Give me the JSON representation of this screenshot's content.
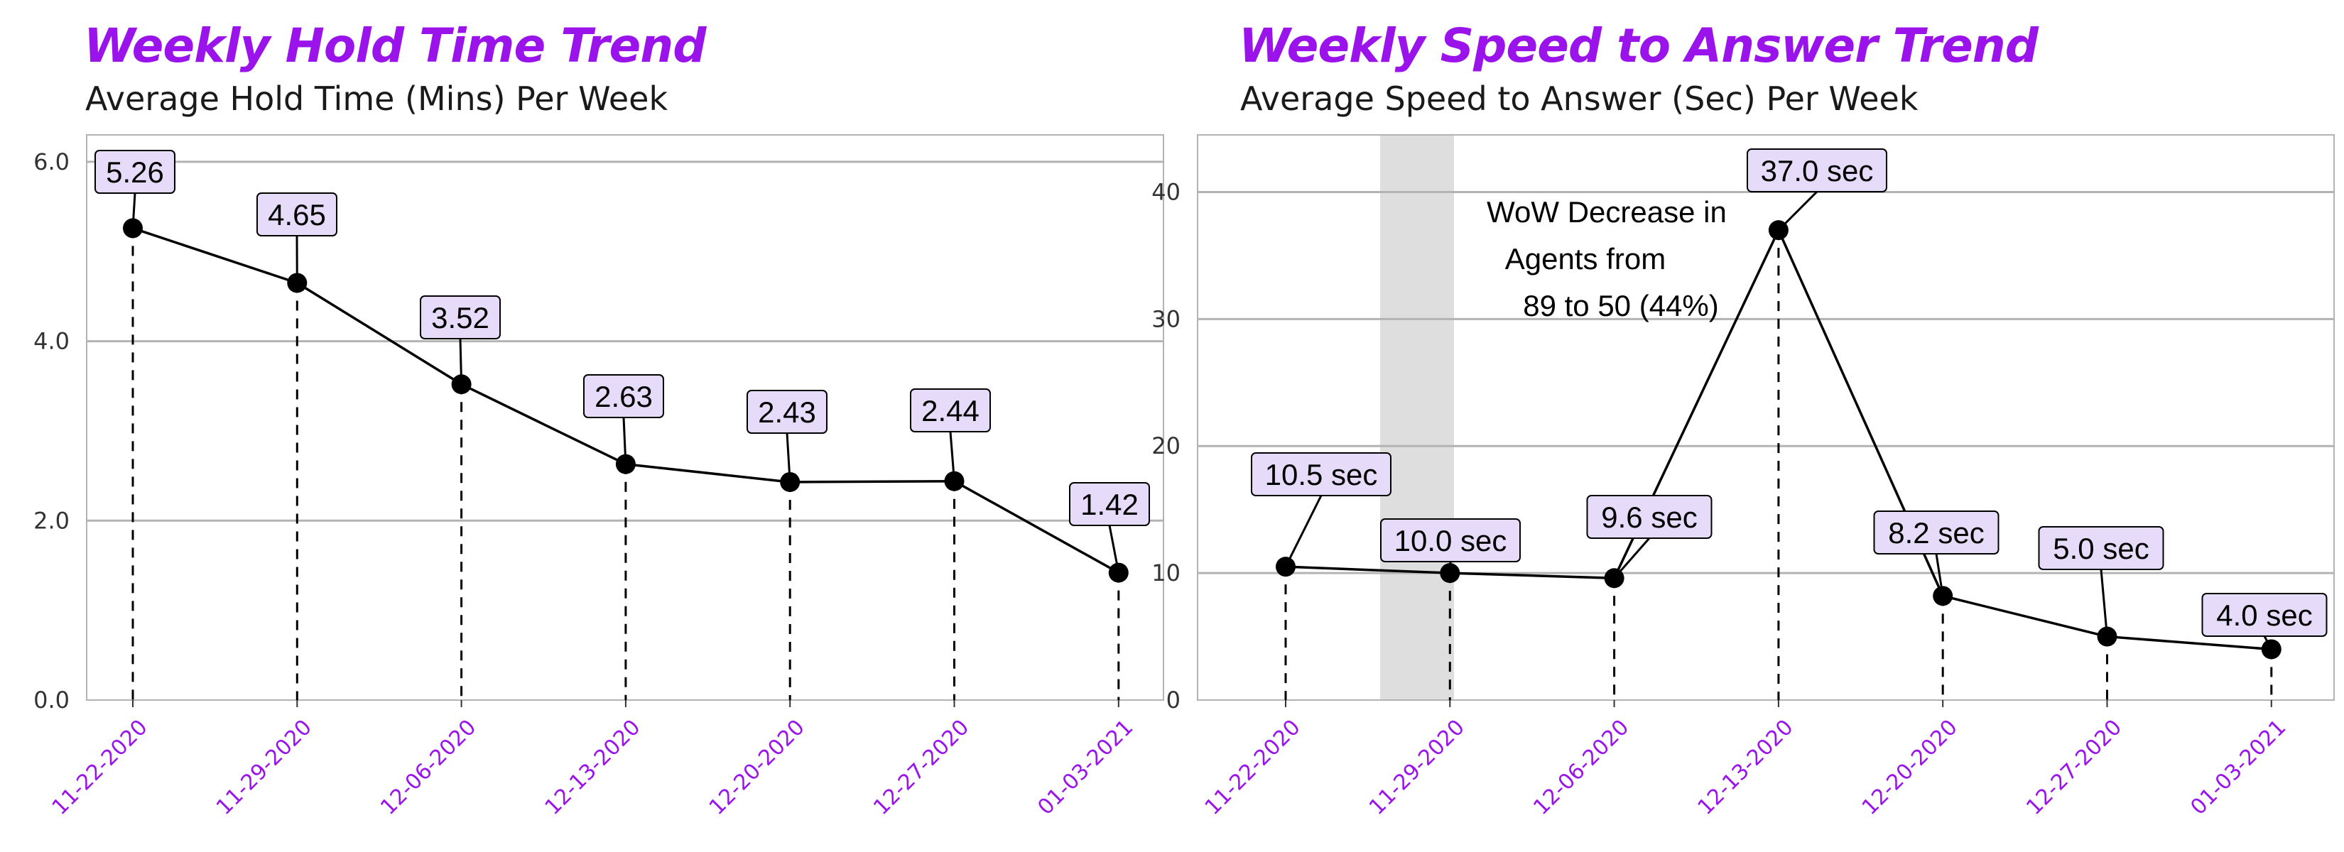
{
  "chart_data": [
    {
      "type": "line",
      "title": "Weekly Hold Time Trend",
      "subtitle": "Average Hold Time (Mins) Per Week",
      "categories": [
        "11-22-2020",
        "11-29-2020",
        "12-06-2020",
        "12-13-2020",
        "12-20-2020",
        "12-27-2020",
        "01-03-2021"
      ],
      "values": [
        5.26,
        4.65,
        3.52,
        2.63,
        2.43,
        2.44,
        1.42
      ],
      "data_labels": [
        "5.26",
        "4.65",
        "3.52",
        "2.63",
        "2.43",
        "2.44",
        "1.42"
      ],
      "ylim": [
        0,
        6.3
      ],
      "yticks": [
        0,
        2,
        4,
        6
      ],
      "ytick_labels": [
        "0.0",
        "2.0",
        "4.0",
        "6.0"
      ],
      "grid": "horizontal",
      "colors": {
        "line": "#000000",
        "label_bg": "#e6dcfa",
        "title": "#9a13ea",
        "tick": "#9a13ea"
      }
    },
    {
      "type": "line",
      "title": "Weekly Speed to Answer Trend",
      "subtitle": "Average Speed to Answer (Sec) Per Week",
      "categories": [
        "11-22-2020",
        "11-29-2020",
        "12-06-2020",
        "12-13-2020",
        "12-20-2020",
        "12-27-2020",
        "01-03-2021"
      ],
      "values": [
        10.5,
        10.0,
        9.6,
        37.0,
        8.2,
        5.0,
        4.0
      ],
      "data_labels": [
        "10.5 sec",
        "10.0 sec",
        "9.6 sec",
        "37.0 sec",
        "8.2 sec",
        "5.0 sec",
        "4.0 sec"
      ],
      "ylim": [
        0,
        44.5
      ],
      "yticks": [
        0,
        10,
        20,
        30,
        40
      ],
      "ytick_labels": [
        "0",
        "10",
        "20",
        "30",
        "40"
      ],
      "grid": "horizontal",
      "highlight_category": "12-13-2020",
      "annotation": [
        "WoW Decrease in",
        "Agents from",
        "89 to 50 (44%)"
      ],
      "colors": {
        "line": "#000000",
        "label_bg": "#e6dcfa",
        "highlight": "#dedede",
        "title": "#9a13ea",
        "tick": "#9a13ea"
      }
    }
  ]
}
